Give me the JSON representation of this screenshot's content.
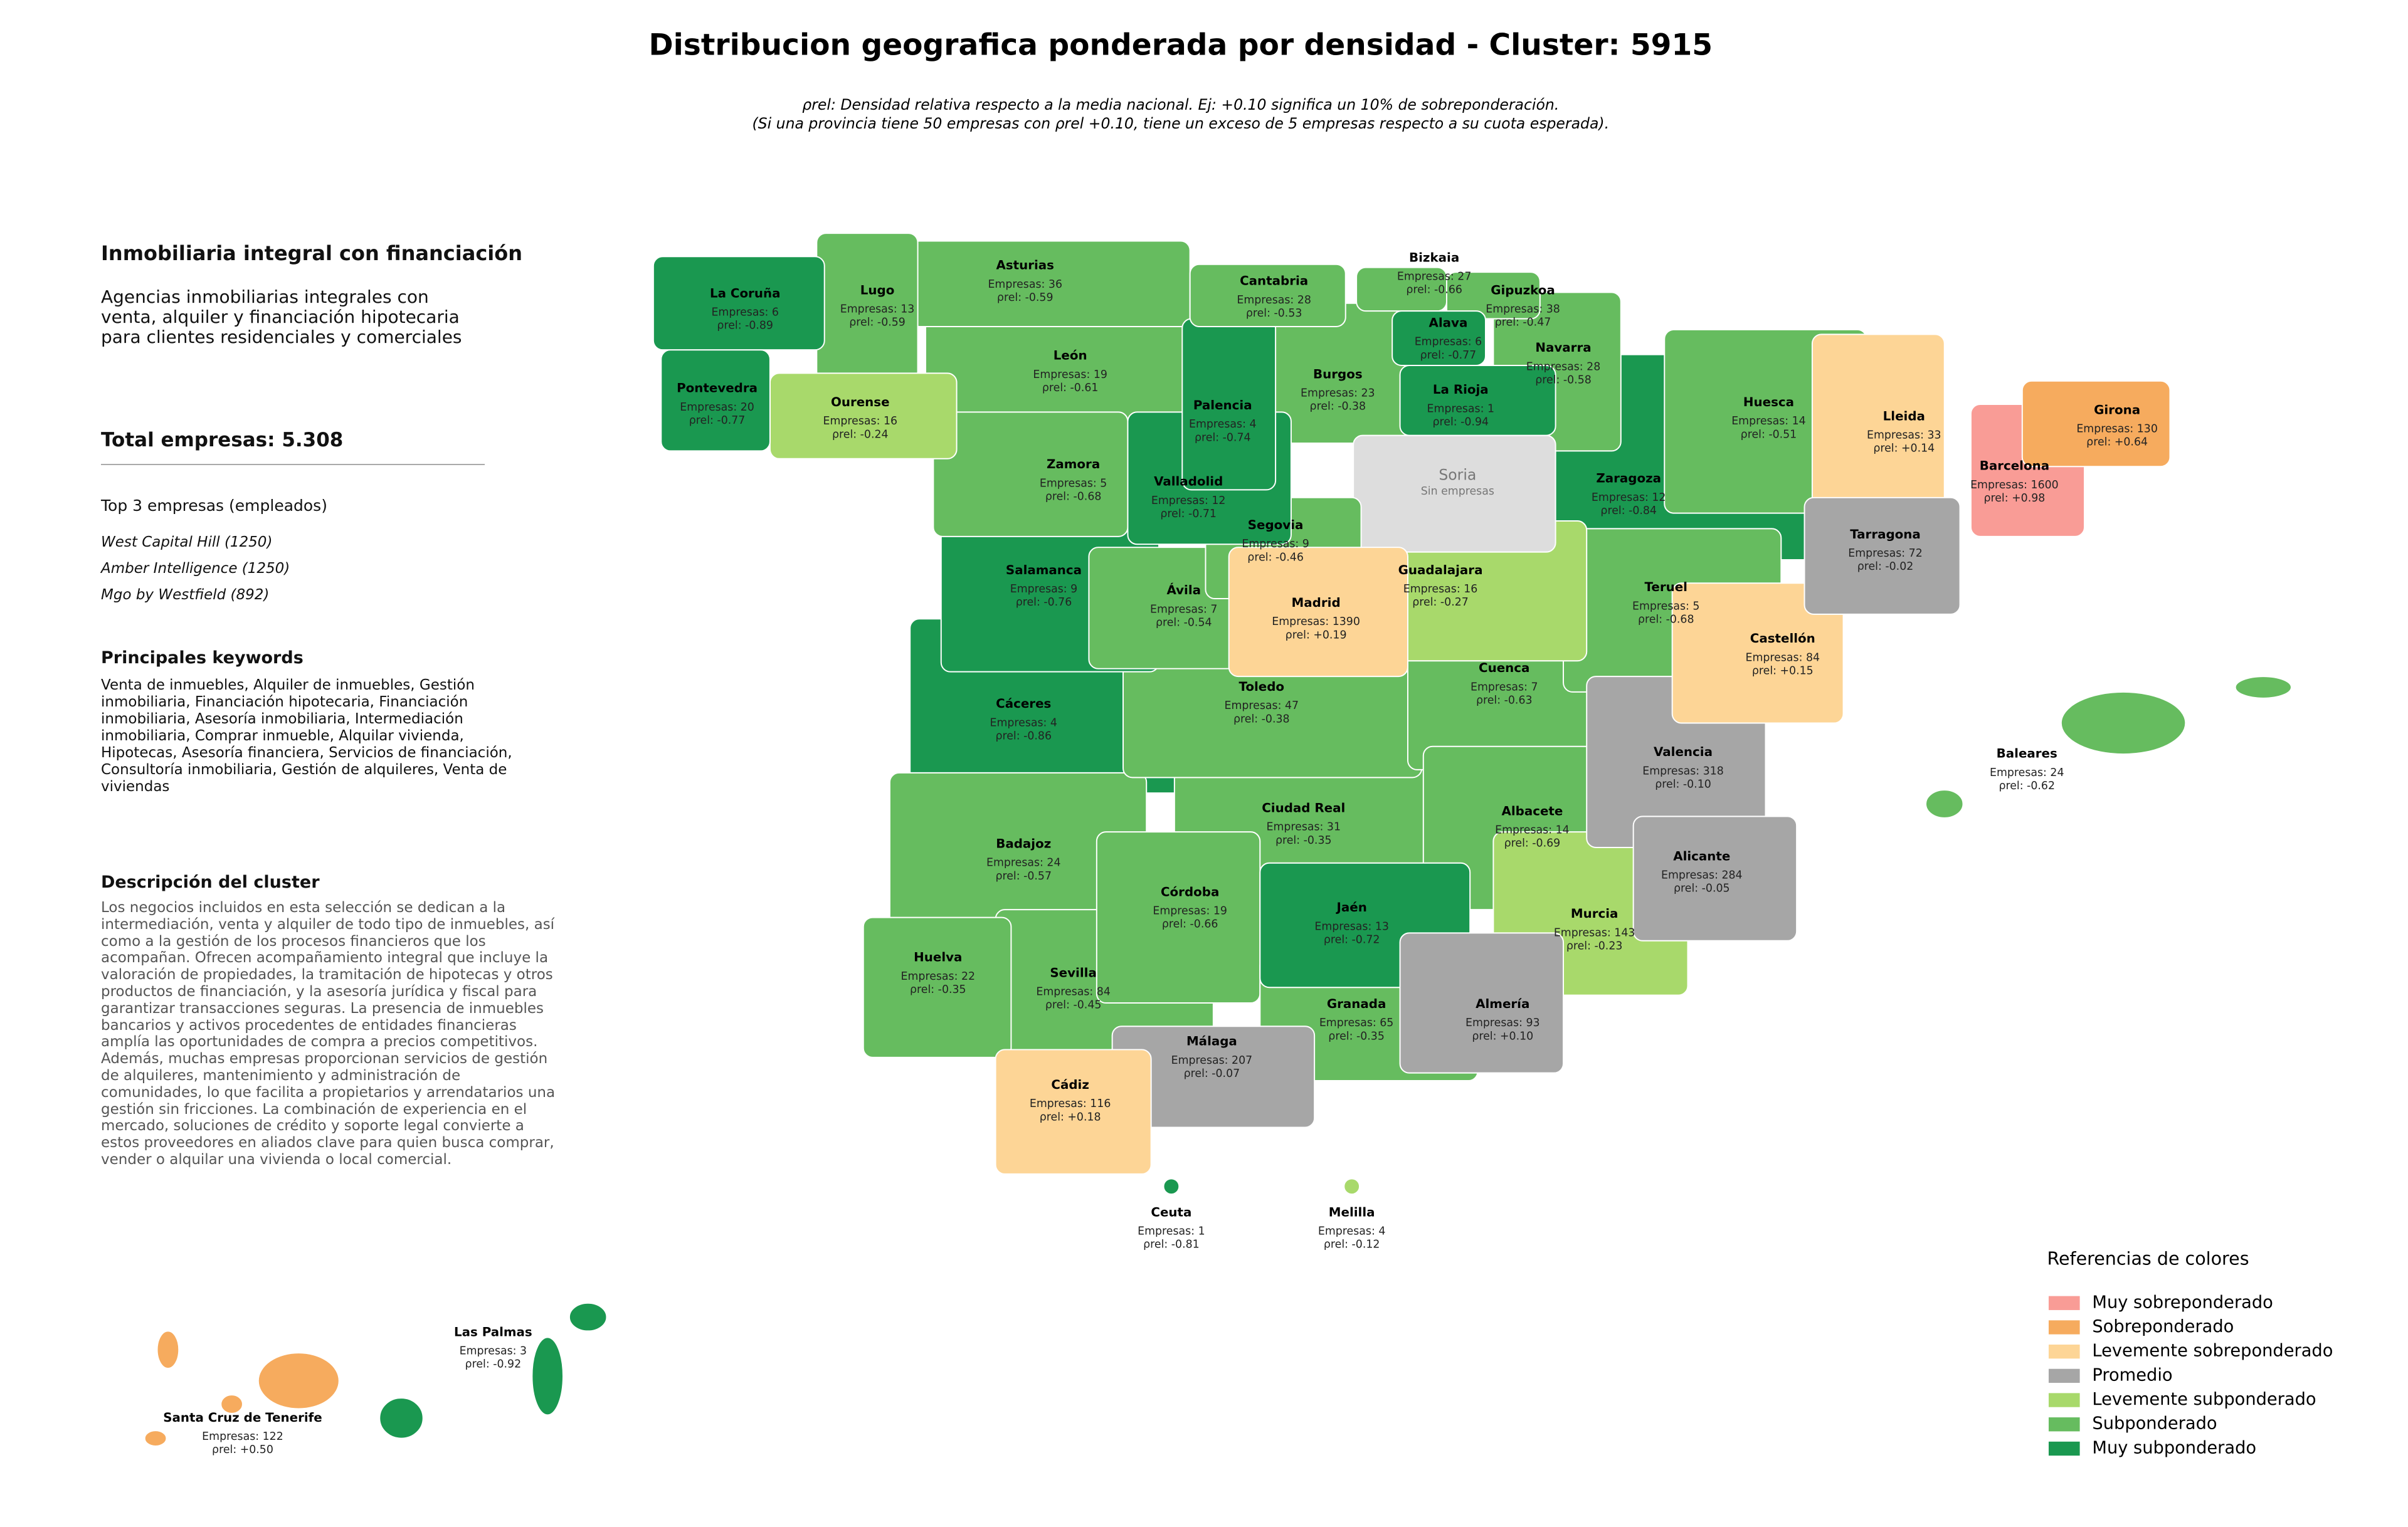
{
  "title": "Distribucion geografica ponderada por densidad - Cluster: 5915",
  "subtitle": [
    "ρrel: Densidad relativa respecto a la media nacional. Ej: +0.10 significa un 10% de sobreponderación.",
    "(Si una provincia tiene 50 empresas con ρrel +0.10, tiene un exceso de 5 empresas respecto a su cuota esperada)."
  ],
  "sidebar": {
    "heading": "Inmobiliaria integral con financiación",
    "description": "Agencias inmobiliarias integrales con venta, alquiler y financiación hipotecaria para clientes residenciales y comerciales",
    "total": "Total empresas: 5.308",
    "top_title": "Top 3 empresas (empleados)",
    "top": [
      "West Capital Hill (1250)",
      "Amber Intelligence (1250)",
      "Mgo by Westfield (892)"
    ],
    "keywords_title": "Principales keywords",
    "keywords": "Venta de inmuebles, Alquiler de inmuebles, Gestión inmobiliaria, Financiación hipotecaria, Financiación inmobiliaria, Asesoría inmobiliaria, Intermediación inmobiliaria, Comprar inmueble, Alquilar vivienda, Hipotecas, Asesoría financiera, Servicios de financiación, Consultoría inmobiliaria, Gestión de alquileres, Venta de viviendas",
    "cluster_title": "Descripción del cluster",
    "cluster_text": "Los negocios incluidos en esta selección se dedican a la intermediación, venta y alquiler de todo tipo de inmuebles, así como a la gestión de los procesos financieros que los acompañan. Ofrecen acompañamiento integral que incluye la valoración de propiedades, la tramitación de hipotecas y otros productos de financiación, y la asesoría jurídica y fiscal para garantizar transacciones seguras. La presencia de inmuebles bancarios y activos procedentes de entidades financieras amplía las oportunidades de compra a precios competitivos. Además, muchas empresas proporcionan servicios de gestión de alquileres, mantenimiento y administración de comunidades, lo que facilita a propietarios y arrendatarios una gestión sin fricciones. La combinación de experiencia en el mercado, soluciones de crédito y soporte legal convierte a estos proveedores en aliados clave para quien busca comprar, vender o alquilar una vivienda o local comercial."
  },
  "legend": {
    "title": "Referencias de colores",
    "items": [
      {
        "label": "Muy sobreponderado",
        "color": "#f99c96"
      },
      {
        "label": "Sobreponderado",
        "color": "#f6ab5e"
      },
      {
        "label": "Levemente sobreponderado",
        "color": "#fdd596"
      },
      {
        "label": "Promedio",
        "color": "#a6a6a6"
      },
      {
        "label": "Levemente subponderado",
        "color": "#a8d96b"
      },
      {
        "label": "Subponderado",
        "color": "#66bc5f"
      },
      {
        "label": "Muy subponderado",
        "color": "#1a9850"
      }
    ]
  },
  "no_data_color": "#dddddd",
  "provinces": [
    {
      "name": "Zaragoza",
      "empresas": "Empresas: 12",
      "rho": "ρrel: -0.84",
      "category": 6
    },
    {
      "name": "Huesca",
      "empresas": "Empresas: 14",
      "rho": "ρrel: -0.51",
      "category": 5
    },
    {
      "name": "Cáceres",
      "empresas": "Empresas: 4",
      "rho": "ρrel: -0.86",
      "category": 6
    },
    {
      "name": "Badajoz",
      "empresas": "Empresas: 24",
      "rho": "ρrel: -0.57",
      "category": 5
    },
    {
      "name": "Ciudad Real",
      "empresas": "Empresas: 31",
      "rho": "ρrel: -0.35",
      "category": 5
    },
    {
      "name": "Toledo",
      "empresas": "Empresas: 47",
      "rho": "ρrel: -0.38",
      "category": 5
    },
    {
      "name": "Cuenca",
      "empresas": "Empresas: 7",
      "rho": "ρrel: -0.63",
      "category": 5
    },
    {
      "name": "Teruel",
      "empresas": "Empresas: 5",
      "rho": "ρrel: -0.68",
      "category": 5
    },
    {
      "name": "Albacete",
      "empresas": "Empresas: 14",
      "rho": "ρrel: -0.69",
      "category": 5
    },
    {
      "name": "León",
      "empresas": "Empresas: 19",
      "rho": "ρrel: -0.61",
      "category": 5
    },
    {
      "name": "Asturias",
      "empresas": "Empresas: 36",
      "rho": "ρrel: -0.59",
      "category": 5
    },
    {
      "name": "Burgos",
      "empresas": "Empresas: 23",
      "rho": "ρrel: -0.38",
      "category": 5
    },
    {
      "name": "Navarra",
      "empresas": "Empresas: 28",
      "rho": "ρrel: -0.58",
      "category": 5
    },
    {
      "name": "Salamanca",
      "empresas": "Empresas: 9",
      "rho": "ρrel: -0.76",
      "category": 6
    },
    {
      "name": "Zamora",
      "empresas": "Empresas: 5",
      "rho": "ρrel: -0.68",
      "category": 5
    },
    {
      "name": "Guadalajara",
      "empresas": "Empresas: 16",
      "rho": "ρrel: -0.27",
      "category": 4
    },
    {
      "name": "Soria",
      "empresas": "Sin empresas",
      "category": null
    },
    {
      "name": "Lleida",
      "empresas": "Empresas: 33",
      "rho": "ρrel: +0.14",
      "category": 2
    },
    {
      "name": "Sevilla",
      "empresas": "Empresas: 84",
      "rho": "ρrel: -0.45",
      "category": 5
    },
    {
      "name": "Córdoba",
      "empresas": "Empresas: 19",
      "rho": "ρrel: -0.66",
      "category": 5
    },
    {
      "name": "Granada",
      "empresas": "Empresas: 65",
      "rho": "ρrel: -0.35",
      "category": 5
    },
    {
      "name": "Jaén",
      "empresas": "Empresas: 13",
      "rho": "ρrel: -0.72",
      "category": 6
    },
    {
      "name": "Murcia",
      "empresas": "Empresas: 143",
      "rho": "ρrel: -0.23",
      "category": 4
    },
    {
      "name": "Huelva",
      "empresas": "Empresas: 22",
      "rho": "ρrel: -0.35",
      "category": 5
    },
    {
      "name": "Almería",
      "empresas": "Empresas: 93",
      "rho": "ρrel: +0.10",
      "category": 3
    },
    {
      "name": "Valencia",
      "empresas": "Empresas: 318",
      "rho": "ρrel: -0.10",
      "category": 3
    },
    {
      "name": "Alicante",
      "empresas": "Empresas: 284",
      "rho": "ρrel: -0.05",
      "category": 3
    },
    {
      "name": "Castellón",
      "empresas": "Empresas: 84",
      "rho": "ρrel: +0.15",
      "category": 2
    },
    {
      "name": "Tarragona",
      "empresas": "Empresas: 72",
      "rho": "ρrel: -0.02",
      "category": 3
    },
    {
      "name": "Málaga",
      "empresas": "Empresas: 207",
      "rho": "ρrel: -0.07",
      "category": 3
    },
    {
      "name": "Cádiz",
      "empresas": "Empresas: 116",
      "rho": "ρrel: +0.18",
      "category": 2
    },
    {
      "name": "Ávila",
      "empresas": "Empresas: 7",
      "rho": "ρrel: -0.54",
      "category": 5
    },
    {
      "name": "Segovia",
      "empresas": "Empresas: 9",
      "rho": "ρrel: -0.46",
      "category": 5
    },
    {
      "name": "Valladolid",
      "empresas": "Empresas: 12",
      "rho": "ρrel: -0.71",
      "category": 6
    },
    {
      "name": "Palencia",
      "empresas": "Empresas: 4",
      "rho": "ρrel: -0.74",
      "category": 6
    },
    {
      "name": "Madrid",
      "empresas": "Empresas: 1390",
      "rho": "ρrel: +0.19",
      "category": 2
    },
    {
      "name": "Lugo",
      "empresas": "Empresas: 13",
      "rho": "ρrel: -0.59",
      "category": 5
    },
    {
      "name": "Ourense",
      "empresas": "Empresas: 16",
      "rho": "ρrel: -0.24",
      "category": 4
    },
    {
      "name": "Pontevedra",
      "empresas": "Empresas: 20",
      "rho": "ρrel: -0.77",
      "category": 6
    },
    {
      "name": "La Coruña",
      "empresas": "Empresas: 6",
      "rho": "ρrel: -0.89",
      "category": 6
    },
    {
      "name": "Cantabria",
      "empresas": "Empresas: 28",
      "rho": "ρrel: -0.53",
      "category": 5
    },
    {
      "name": "Bizkaia",
      "empresas": "Empresas: 27",
      "rho": "ρrel: -0.66",
      "category": 5
    },
    {
      "name": "Gipuzkoa",
      "empresas": "Empresas: 38",
      "rho": "ρrel: -0.47",
      "category": 5
    },
    {
      "name": "Alava",
      "empresas": "Empresas: 6",
      "rho": "ρrel: -0.77",
      "category": 6
    },
    {
      "name": "La Rioja",
      "empresas": "Empresas: 1",
      "rho": "ρrel: -0.94",
      "category": 6
    },
    {
      "name": "Barcelona",
      "empresas": "Empresas: 1600",
      "rho": "ρrel: +0.98",
      "category": 0
    },
    {
      "name": "Girona",
      "empresas": "Empresas: 130",
      "rho": "ρrel: +0.64",
      "category": 1
    },
    {
      "name": "Baleares",
      "empresas": "Empresas: 24",
      "rho": "ρrel: -0.62",
      "category": 5
    },
    {
      "name": "Ceuta",
      "empresas": "Empresas: 1",
      "rho": "ρrel: -0.81",
      "category": 6
    },
    {
      "name": "Melilla",
      "empresas": "Empresas: 4",
      "rho": "ρrel: -0.12",
      "category": 4
    },
    {
      "name": "Las Palmas",
      "empresas": "Empresas: 3",
      "rho": "ρrel: -0.92",
      "category": 6
    },
    {
      "name": "Santa Cruz de Tenerife",
      "empresas": "Empresas: 122",
      "rho": "ρrel: +0.50",
      "category": 1
    }
  ]
}
